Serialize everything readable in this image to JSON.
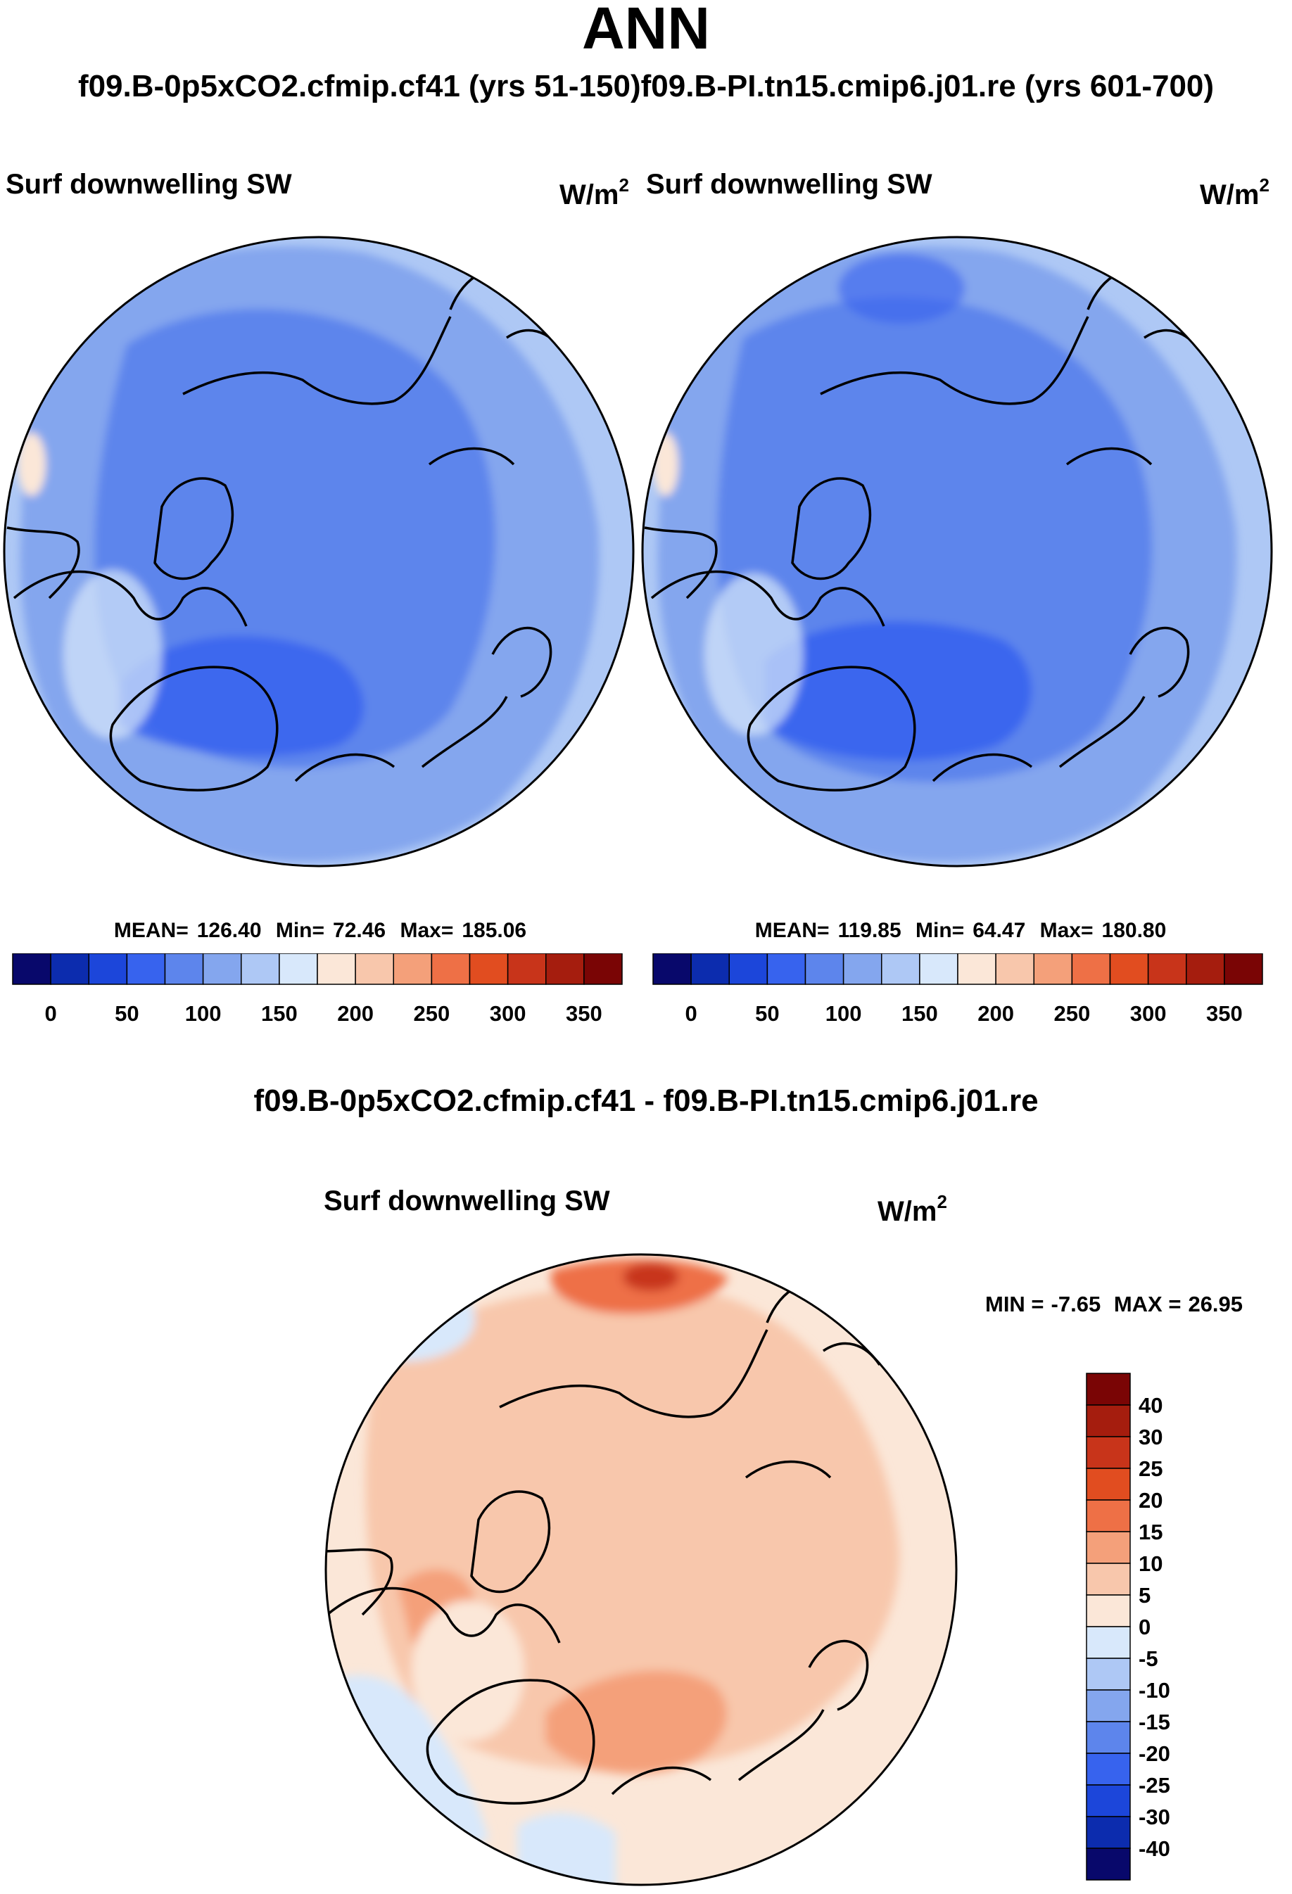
{
  "title": "ANN",
  "case_titles": [
    "f09.B-0p5xCO2.cfmip.cf41 (yrs 51-150)",
    "f09.B-PI.tn15.cmip6.j01.re (yrs 601-700)"
  ],
  "colors": {
    "scale": [
      "#08086b",
      "#0c2cae",
      "#1c46da",
      "#3763ee",
      "#5d85ec",
      "#84a6ee",
      "#aec8f5",
      "#d8e8fb",
      "#fbe7d8",
      "#f8c7ac",
      "#f4a07a",
      "#ee7046",
      "#e14d20",
      "#c8341a",
      "#a51d0e",
      "#7a0505"
    ],
    "land": "#000000"
  },
  "chart_data": [
    {
      "type": "heatmap",
      "title": "Surf downwelling SW",
      "units_base": "W/m",
      "units_exp": "2",
      "mean_label": "MEAN=",
      "mean": "126.40",
      "min_label": "Min=",
      "min": "72.46",
      "max_label": "Max=",
      "max": "185.06",
      "colorbar_ticks": [
        "0",
        "50",
        "100",
        "150",
        "200",
        "250",
        "300",
        "350"
      ],
      "levels": [
        0,
        25,
        50,
        75,
        100,
        125,
        150,
        175,
        200,
        225,
        250,
        275,
        300,
        325,
        350
      ]
    },
    {
      "type": "heatmap",
      "title": "Surf downwelling SW",
      "units_base": "W/m",
      "units_exp": "2",
      "mean_label": "MEAN=",
      "mean": "119.85",
      "min_label": "Min=",
      "min": "64.47",
      "max_label": "Max=",
      "max": "180.80",
      "colorbar_ticks": [
        "0",
        "50",
        "100",
        "150",
        "200",
        "250",
        "300",
        "350"
      ],
      "levels": [
        0,
        25,
        50,
        75,
        100,
        125,
        150,
        175,
        200,
        225,
        250,
        275,
        300,
        325,
        350
      ]
    },
    {
      "type": "heatmap",
      "heading": "f09.B-0p5xCO2.cfmip.cf41 - f09.B-PI.tn15.cmip6.j01.re",
      "title": "Surf downwelling SW",
      "units_base": "W/m",
      "units_exp": "2",
      "min_label": "MIN =",
      "min": "-7.65",
      "max_label": "MAX =",
      "max": "26.95",
      "colorbar_ticks": [
        "40",
        "30",
        "25",
        "20",
        "15",
        "10",
        "5",
        "0",
        "-5",
        "-10",
        "-15",
        "-20",
        "-25",
        "-30",
        "-40"
      ],
      "levels": [
        -40,
        -30,
        -25,
        -20,
        -15,
        -10,
        -5,
        0,
        5,
        10,
        15,
        20,
        25,
        30,
        40
      ]
    }
  ]
}
